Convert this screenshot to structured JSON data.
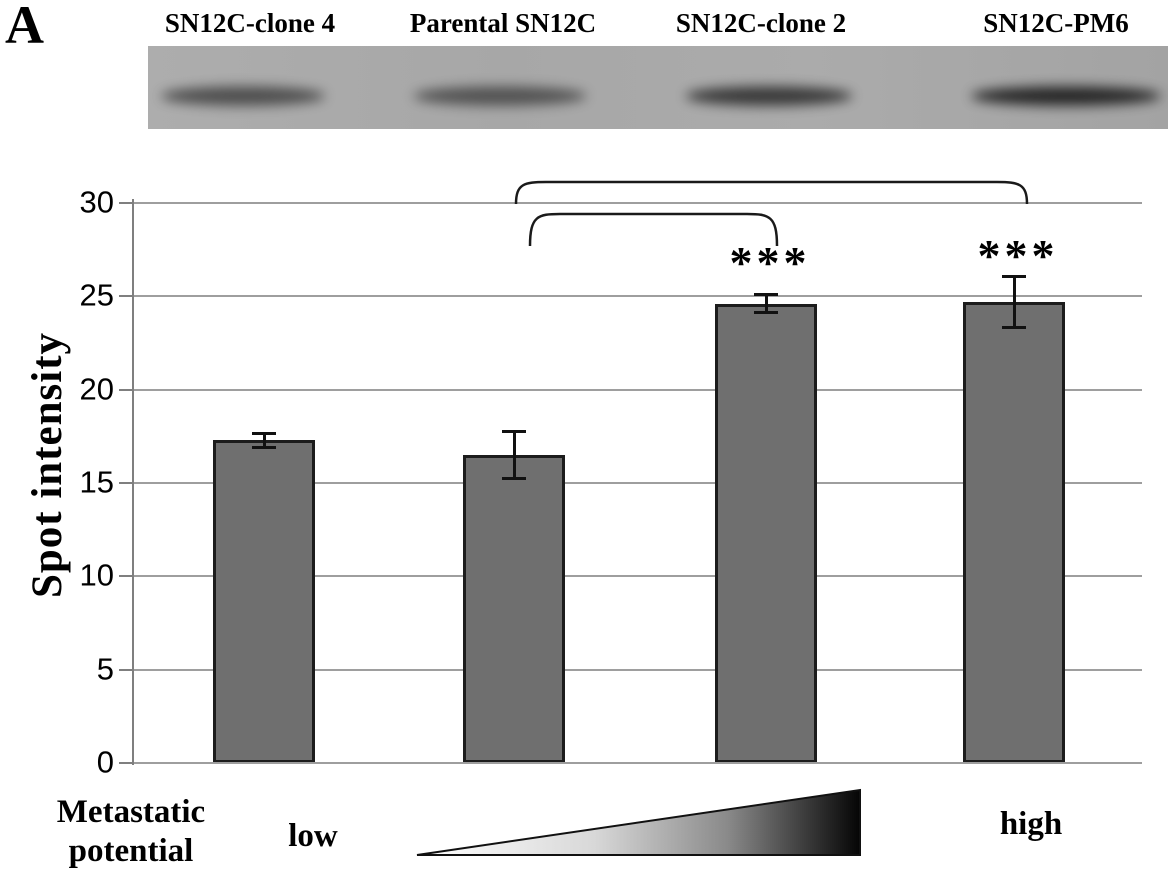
{
  "panel_label": "A",
  "blot": {
    "lane_labels": [
      "SN12C-clone 4",
      "Parental SN12C",
      "SN12C-clone 2",
      "SN12C-PM6"
    ],
    "band_darkness": [
      0.62,
      0.58,
      0.76,
      0.88
    ]
  },
  "chart_data": {
    "type": "bar",
    "categories": [
      "SN12C-clone 4",
      "Parental SN12C",
      "SN12C-clone 2",
      "SN12C-PM6"
    ],
    "values": [
      17.3,
      16.5,
      24.6,
      24.7
    ],
    "errors": [
      0.4,
      1.3,
      0.5,
      1.4
    ],
    "ylabel": "Spot intensity",
    "xlabel": "",
    "title": "",
    "ylim": [
      0,
      30
    ],
    "yticks": [
      0,
      5,
      10,
      15,
      20,
      25,
      30
    ],
    "grid": true,
    "legend_position": "none",
    "bar_color": "#6f6f6f",
    "significance_labels": [
      "",
      "",
      "***",
      "***"
    ],
    "comparisons": [
      {
        "between": [
          "Parental SN12C",
          "SN12C-clone 2"
        ],
        "marker": "bracket"
      },
      {
        "between": [
          "Parental SN12C",
          "SN12C-PM6"
        ],
        "marker": "bracket"
      }
    ]
  },
  "footer": {
    "row_label_line1": "Metastatic",
    "row_label_line2": "potential",
    "low_label": "low",
    "high_label": "high"
  },
  "colors": {
    "bar_fill": "#6f6f6f",
    "bar_border": "#1c1c1c",
    "gridline": "#9e9e9e",
    "axis": "#7f7f7f",
    "blot_background": "#a9a9a9",
    "text": "#000000"
  }
}
